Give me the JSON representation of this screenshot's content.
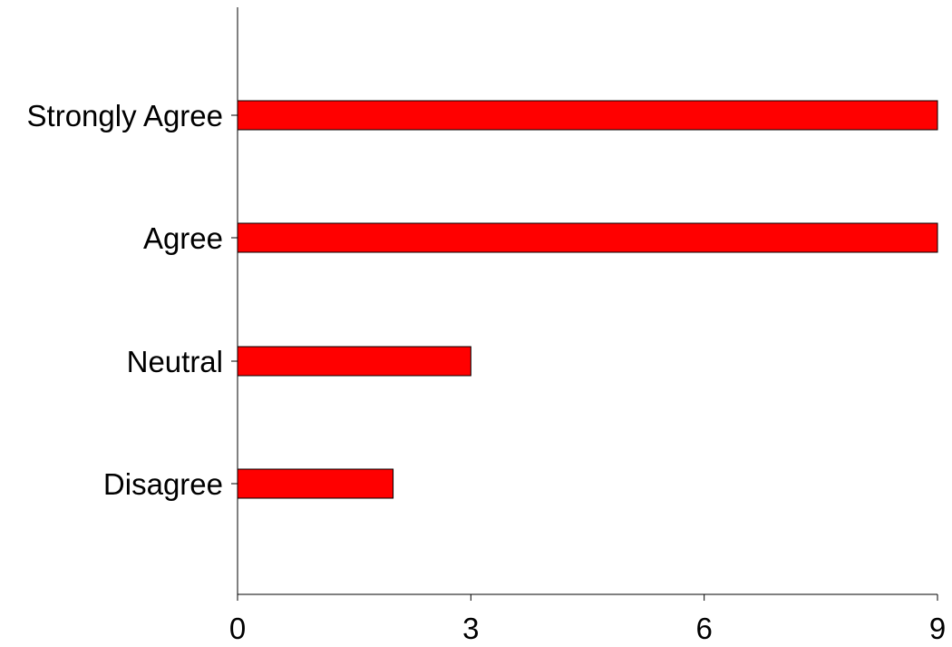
{
  "chart_data": {
    "type": "bar",
    "orientation": "horizontal",
    "categories": [
      "Strongly Agree",
      "Agree",
      "Neutral",
      "Disagree"
    ],
    "values": [
      9,
      9,
      3,
      2
    ],
    "xlim": [
      0,
      9
    ],
    "xticks": [
      0,
      3,
      6,
      9
    ],
    "grid": false,
    "title": "",
    "xlabel": "",
    "ylabel": "",
    "bar_color": "#ff0000",
    "bar_edge_color": "#000000"
  }
}
